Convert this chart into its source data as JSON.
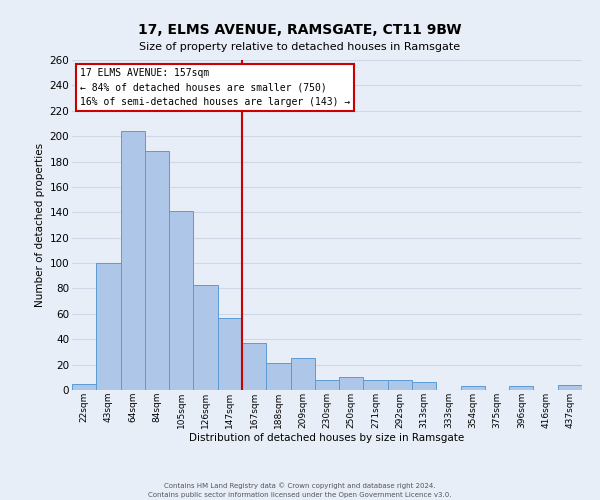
{
  "title": "17, ELMS AVENUE, RAMSGATE, CT11 9BW",
  "subtitle": "Size of property relative to detached houses in Ramsgate",
  "xlabel": "Distribution of detached houses by size in Ramsgate",
  "ylabel": "Number of detached properties",
  "bar_labels": [
    "22sqm",
    "43sqm",
    "64sqm",
    "84sqm",
    "105sqm",
    "126sqm",
    "147sqm",
    "167sqm",
    "188sqm",
    "209sqm",
    "230sqm",
    "250sqm",
    "271sqm",
    "292sqm",
    "313sqm",
    "333sqm",
    "354sqm",
    "375sqm",
    "396sqm",
    "416sqm",
    "437sqm"
  ],
  "bar_values": [
    5,
    100,
    204,
    188,
    141,
    83,
    57,
    37,
    21,
    25,
    8,
    10,
    8,
    8,
    6,
    0,
    3,
    0,
    3,
    0,
    4
  ],
  "bar_color": "#aec6e8",
  "bar_edge_color": "#5b9bd5",
  "bar_width": 1.0,
  "ylim": [
    0,
    260
  ],
  "yticks": [
    0,
    20,
    40,
    60,
    80,
    100,
    120,
    140,
    160,
    180,
    200,
    220,
    240,
    260
  ],
  "vline_color": "#cc0000",
  "annotation_box_text_line1": "17 ELMS AVENUE: 157sqm",
  "annotation_box_text_line2": "← 84% of detached houses are smaller (750)",
  "annotation_box_text_line3": "16% of semi-detached houses are larger (143) →",
  "annotation_box_edge_color": "#cc0000",
  "annotation_box_facecolor": "#ffffff",
  "grid_color": "#d0d8e8",
  "background_color": "#e8eef8",
  "footer_line1": "Contains HM Land Registry data © Crown copyright and database right 2024.",
  "footer_line2": "Contains public sector information licensed under the Open Government Licence v3.0."
}
